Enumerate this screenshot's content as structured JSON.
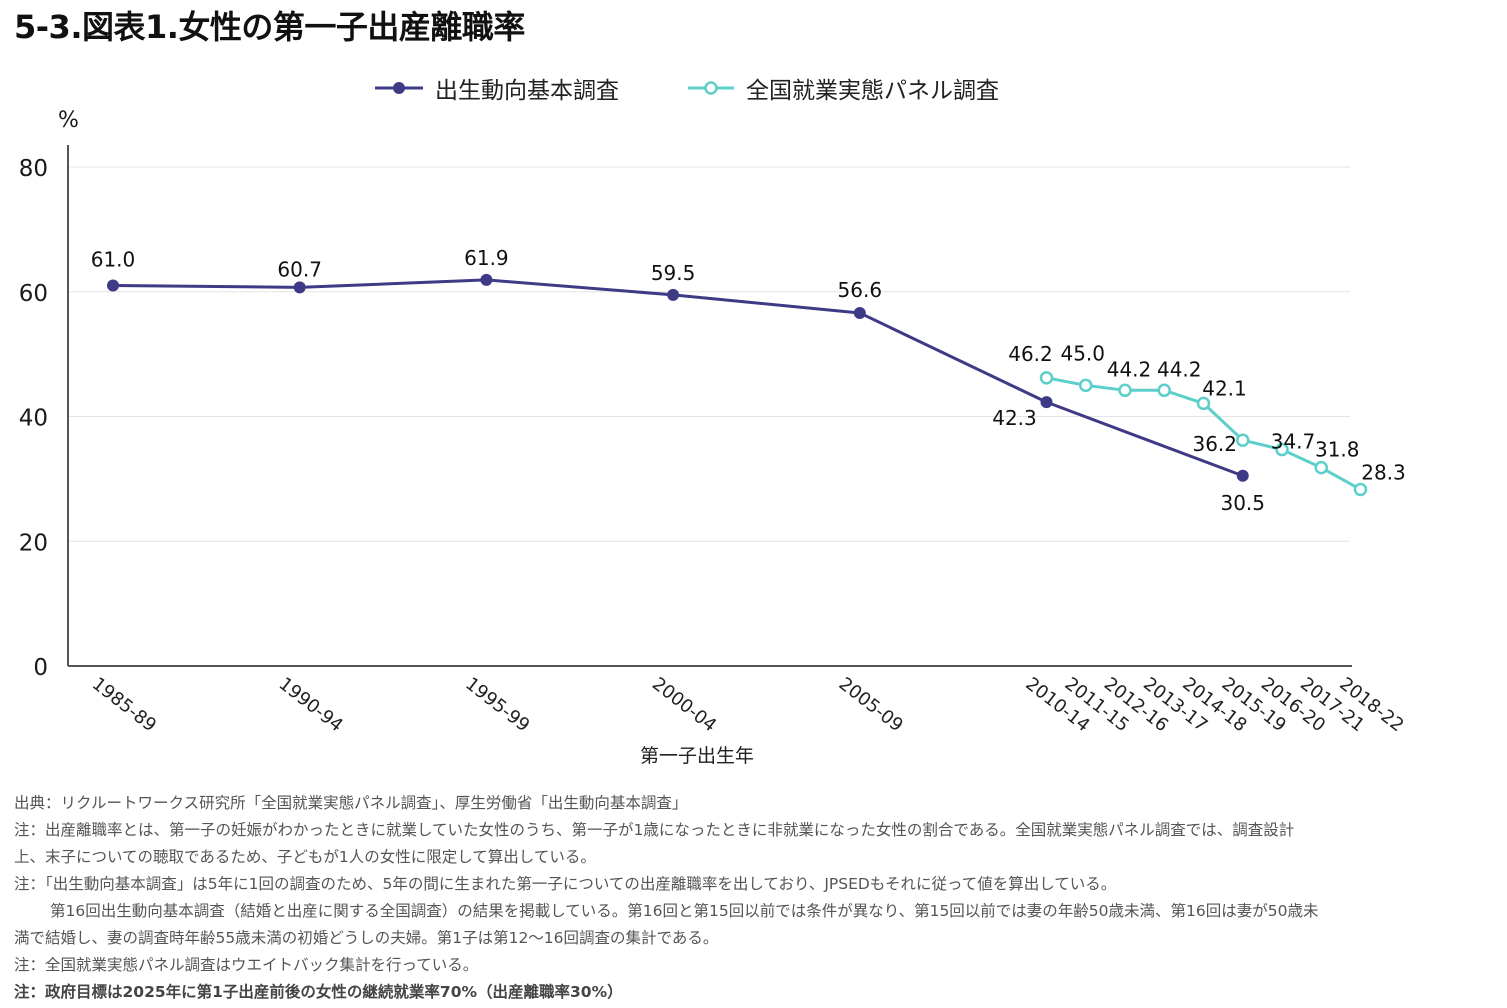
{
  "title": "5-3.図表1.女性の第一子出産離職率",
  "legend": [
    {
      "label": "出生動向基本調査",
      "color": "#3f3a86",
      "marker": "filled"
    },
    {
      "label": "全国就業実態パネル調査",
      "color": "#5ccfcb",
      "marker": "hollow"
    }
  ],
  "chart_data": {
    "type": "line",
    "ylabel": "%",
    "xlabel": "第一子出生年",
    "ylim": [
      0,
      80
    ],
    "yticks": [
      0,
      20,
      40,
      60,
      80
    ],
    "grid": true,
    "legend_position": "top-center",
    "categories": [
      "1985-89",
      "1990-94",
      "1995-99",
      "2000-04",
      "2005-09",
      "2010-14",
      "2011-15",
      "2012-16",
      "2013-17",
      "2014-18",
      "2015-19",
      "2016-20",
      "2017-21",
      "2018-22"
    ],
    "series": [
      {
        "name": "出生動向基本調査",
        "color": "#3f3a86",
        "points": [
          {
            "x": "1985-89",
            "y": 61.0,
            "label": "61.0"
          },
          {
            "x": "1990-94",
            "y": 60.7,
            "label": "60.7"
          },
          {
            "x": "1995-99",
            "y": 61.9,
            "label": "61.9"
          },
          {
            "x": "2000-04",
            "y": 59.5,
            "label": "59.5"
          },
          {
            "x": "2005-09",
            "y": 56.6,
            "label": "56.6"
          },
          {
            "x": "2010-14",
            "y": 42.3,
            "label": "42.3"
          },
          {
            "x": "2015-19",
            "y": 30.5,
            "label": "30.5"
          }
        ]
      },
      {
        "name": "全国就業実態パネル調査",
        "color": "#5ccfcb",
        "points": [
          {
            "x": "2010-14",
            "y": 46.2,
            "label": "46.2"
          },
          {
            "x": "2011-15",
            "y": 45.0,
            "label": "45.0"
          },
          {
            "x": "2012-16",
            "y": 44.2,
            "label": "44.2"
          },
          {
            "x": "2013-17",
            "y": 44.2,
            "label": "44.2"
          },
          {
            "x": "2014-18",
            "y": 42.1,
            "label": "42.1"
          },
          {
            "x": "2015-19",
            "y": 36.2,
            "label": "36.2"
          },
          {
            "x": "2016-20",
            "y": 34.7,
            "label": "34.7"
          },
          {
            "x": "2017-21",
            "y": 31.8,
            "label": "31.8"
          },
          {
            "x": "2018-22",
            "y": 28.3,
            "label": "28.3"
          }
        ]
      }
    ]
  },
  "notes": [
    "出典：リクルートワークス研究所「全国就業実態パネル調査」、厚生労働省「出生動向基本調査」",
    "注：出産離職率とは、第一子の妊娠がわかったときに就業していた女性のうち、第一子が1歳になったときに非就業になった女性の割合である。全国就業実態パネル調査では、調査設計",
    "上、末子についての聴取であるため、子どもが1人の女性に限定して算出している。",
    "注：「出生動向基本調査」は5年に1回の調査のため、5年の間に生まれた第一子についての出産離職率を出しており、JPSEDもそれに従って値を算出している。",
    "第16回出生動向基本調査（結婚と出産に関する全国調査）の結果を掲載している。第16回と第15回以前では条件が異なり、第15回以前では妻の年齢50歳未満、第16回は妻が50歳未",
    "満で結婚し、妻の調査時年齢55歳未満の初婚どうしの夫婦。第1子は第12～16回調査の集計である。",
    "注：全国就業実態パネル調査はウエイトバック集計を行っている。",
    "注：政府目標は2025年に第1子出産前後の女性の継続就業率70%（出産離職率30%）"
  ]
}
